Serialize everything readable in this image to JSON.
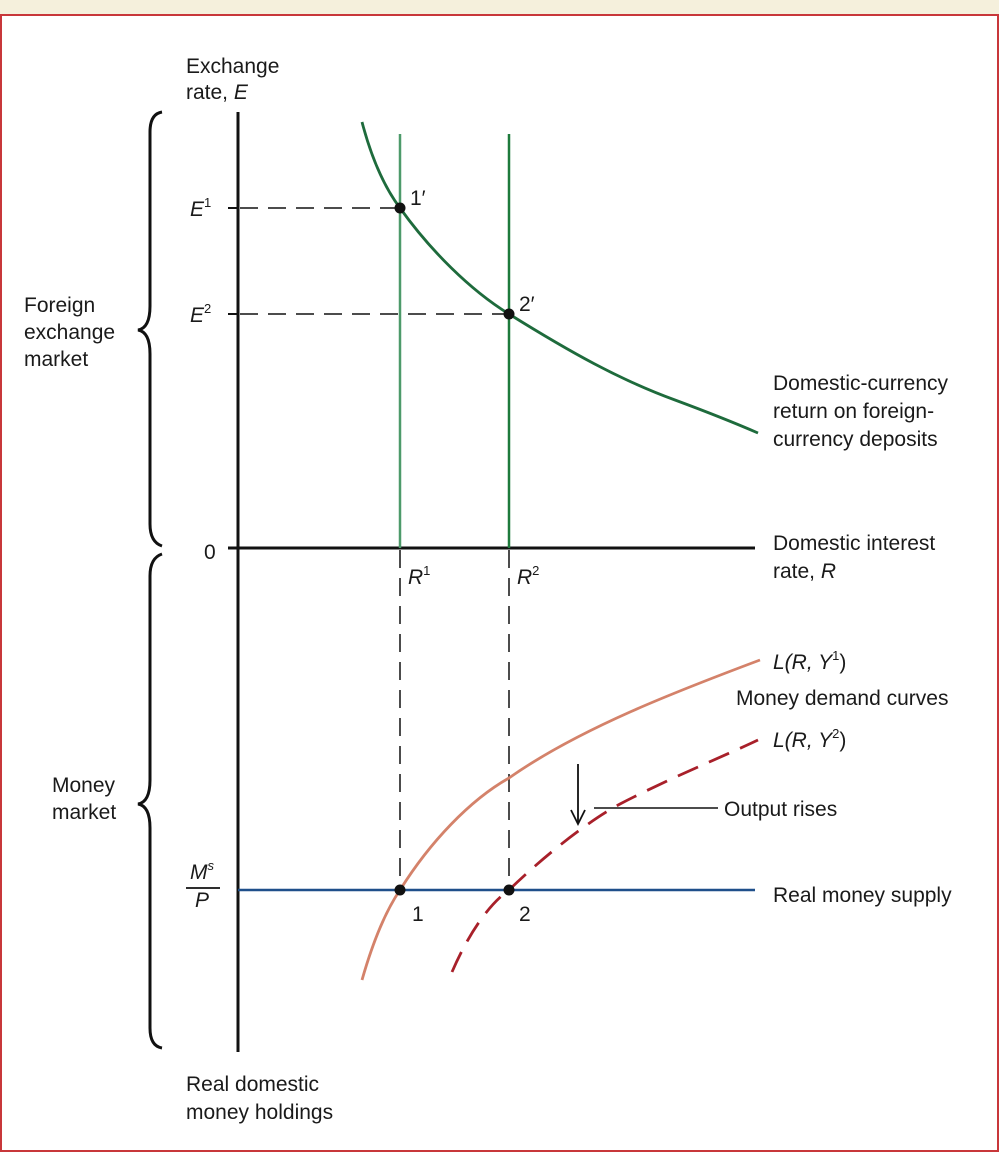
{
  "axes": {
    "y_label_line1": "Exchange",
    "y_label_line2_text": "rate, ",
    "y_label_line2_var": "E",
    "x_label_line1": "Domestic interest",
    "x_label_line2_text": "rate, ",
    "x_label_line2_var": "R",
    "origin": "0",
    "bottom_label_line1": "Real domestic",
    "bottom_label_line2": "money holdings"
  },
  "brackets": {
    "fx_line1": "Foreign",
    "fx_line2": "exchange",
    "fx_line3": "market",
    "mm_line1": "Money",
    "mm_line2": "market"
  },
  "ticks": {
    "e1_base": "E",
    "e1_sup": "1",
    "e2_base": "E",
    "e2_sup": "2",
    "r1_base": "R",
    "r1_sup": "1",
    "r2_base": "R",
    "r2_sup": "2",
    "ms_num_base": "M",
    "ms_num_sup": "s",
    "ms_den": "P"
  },
  "points": {
    "p1prime": "1′",
    "p2prime": "2′",
    "p1": "1",
    "p2": "2"
  },
  "curves": {
    "foreign_line1": "Domestic-currency",
    "foreign_line2": "return on foreign-",
    "foreign_line3": "currency deposits",
    "l1_pre": "L(R, Y",
    "l1_sup": "1",
    "l1_post": ")",
    "money_demand": "Money demand curves",
    "l2_pre": "L(R, Y",
    "l2_sup": "2",
    "l2_post": ")",
    "output_rises": "Output rises",
    "real_money_supply": "Real money supply"
  },
  "colors": {
    "frame": "#c8373a",
    "return_curve": "#1e6b3c",
    "r1_line": "#4d9a6a",
    "r2_line": "#1e7a3c",
    "l1_curve": "#d4826a",
    "l2_curve": "#a8202a",
    "money_supply": "#1f4f8a"
  }
}
